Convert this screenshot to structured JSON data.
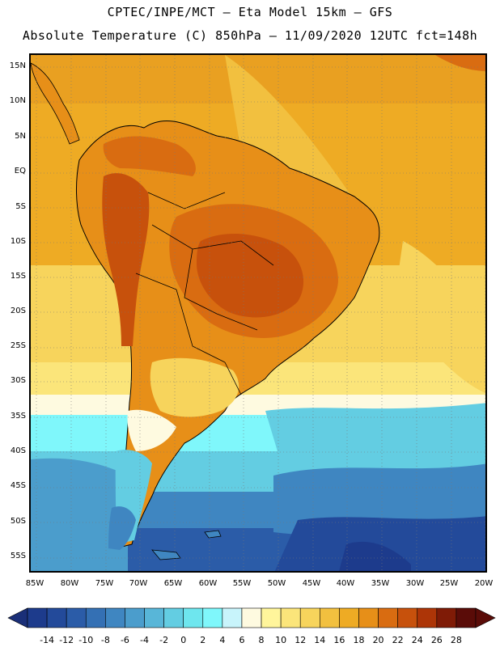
{
  "header": {
    "line1": "CPTEC/INPE/MCT –  Eta Model 15km – GFS",
    "line2": "Absolute Temperature (C) 850hPa – 11/09/2020 12UTC fct=148h"
  },
  "map": {
    "latitude_labels": [
      "15N",
      "10N",
      "5N",
      "EQ",
      "5S",
      "10S",
      "15S",
      "20S",
      "25S",
      "30S",
      "35S",
      "40S",
      "45S",
      "50S",
      "55S"
    ],
    "longitude_labels": [
      "85W",
      "80W",
      "75W",
      "70W",
      "65W",
      "60W",
      "55W",
      "50W",
      "45W",
      "40W",
      "35W",
      "30W",
      "25W",
      "20W"
    ],
    "gridlines": "dotted"
  },
  "legend": {
    "labels": [
      "-14",
      "-12",
      "-10",
      "-8",
      "-6",
      "-4",
      "-2",
      "0",
      "2",
      "4",
      "6",
      "8",
      "10",
      "12",
      "14",
      "16",
      "18",
      "20",
      "22",
      "24",
      "26",
      "28"
    ],
    "colors": [
      "#1d3b8c",
      "#234a9a",
      "#2b5ca8",
      "#3470b4",
      "#3f86c1",
      "#4b9dcc",
      "#58b6d8",
      "#63cde2",
      "#6ee6ee",
      "#7ff7fb",
      "#c8f4fb",
      "#fefae0",
      "#fff59b",
      "#fbe57a",
      "#f7d45c",
      "#f2c03f",
      "#eeab24",
      "#e78f18",
      "#d96c11",
      "#c7510c",
      "#ad3507",
      "#7f1b06",
      "#5a0c08"
    ],
    "left_end_color": "#1a2f78",
    "right_end_color": "#5a0c08"
  }
}
